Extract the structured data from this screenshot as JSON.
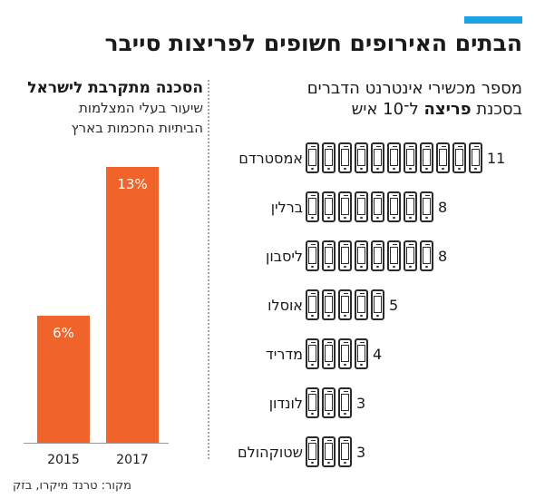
{
  "title": "הבתים האירופים חשופים לפריצות סייבר",
  "source": "מקור: טרנד מיקרו, בזק",
  "accent_color": "#1aa3e0",
  "bar_color": "#f0632a",
  "right_panel": {
    "title": "מספר מכשירי אינטרנט הדברים",
    "subtitle_before": "בסכנת",
    "subtitle_bold": "פריצה",
    "subtitle_after_prefix": "ל־",
    "subtitle_sup": "10",
    "subtitle_after": "ל־10 איש",
    "icon": "smartphone-icon"
  },
  "left_panel": {
    "title": "הסכנה מתקרבת לישראל",
    "subtitle_line1": "שיעור בעלי המצלמות",
    "subtitle_line2": "הביתיות החכמות בארץ"
  },
  "chart_data": [
    {
      "type": "bar",
      "title": "מספר מכשירי אינטרנט הדברים בסכנת פריצה ל־10 איש",
      "orientation": "horizontal-pictogram",
      "categories": [
        "אמסטרדם",
        "ברלין",
        "ליסבון",
        "אוסלו",
        "מדריד",
        "לונדון",
        "שטוקהולם"
      ],
      "values": [
        11,
        8,
        8,
        5,
        4,
        3,
        3
      ],
      "labels": [
        "11",
        "8",
        "8",
        "5",
        "4",
        "3",
        "3"
      ]
    },
    {
      "type": "bar",
      "title": "הסכנה מתקרבת לישראל",
      "subtitle": "שיעור בעלי המצלמות הביתיות החכמות בארץ",
      "categories": [
        "2015",
        "2017"
      ],
      "values": [
        6,
        13
      ],
      "labels": [
        "6%",
        "13%"
      ],
      "ylim": [
        0,
        13
      ]
    }
  ]
}
